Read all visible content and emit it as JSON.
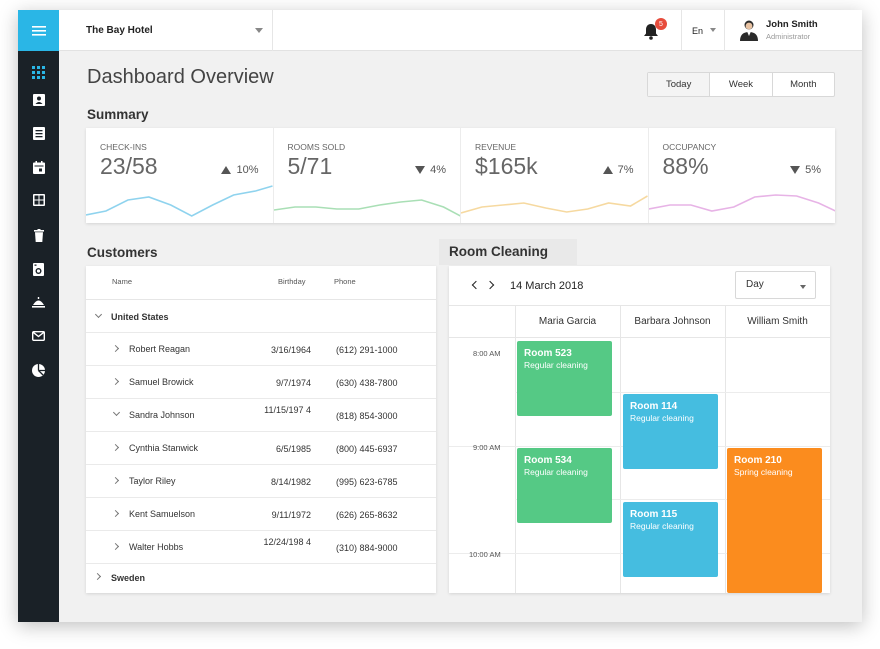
{
  "header": {
    "hotel": "The Bay Hotel",
    "notifications": "5",
    "language": "En",
    "user_name": "John Smith",
    "user_role": "Administrator"
  },
  "sidebar": {
    "icons": [
      "apps-icon",
      "contact-icon",
      "list-icon",
      "calendar-icon",
      "grid-icon",
      "trash-icon",
      "washer-icon",
      "room-service-icon",
      "mail-icon",
      "pie-chart-icon"
    ]
  },
  "page": {
    "title": "Dashboard Overview",
    "ranges": [
      "Today",
      "Week",
      "Month"
    ],
    "selected_range": "Today"
  },
  "summary": {
    "title": "Summary",
    "kpis": [
      {
        "label": "CHECK-INS",
        "value": "23/58",
        "delta": "10%",
        "direction": "up",
        "color": "#8fd3ee"
      },
      {
        "label": "ROOMS SOLD",
        "value": "5/71",
        "delta": "4%",
        "direction": "down",
        "color": "#a9dfb5"
      },
      {
        "label": "REVENUE",
        "value": "$165k",
        "delta": "7%",
        "direction": "up",
        "color": "#f6d9a0"
      },
      {
        "label": "OCCUPANCY",
        "value": "88%",
        "delta": "5%",
        "direction": "down",
        "color": "#e7b3e6"
      }
    ]
  },
  "customers": {
    "title": "Customers",
    "columns": {
      "name": "Name",
      "birthday": "Birthday",
      "phone": "Phone"
    },
    "groups": [
      {
        "country": "United States",
        "expanded": true
      },
      {
        "country": "Sweden",
        "expanded": false
      }
    ],
    "rows": [
      {
        "name": "Robert Reagan",
        "birthday": "3/16/1964",
        "phone": "(612) 291-1000",
        "expanded": false
      },
      {
        "name": "Samuel Browick",
        "birthday": "9/7/1974",
        "phone": "(630) 438-7800",
        "expanded": false
      },
      {
        "name": "Sandra Johnson",
        "birthday": "11/15/197 4",
        "phone": "(818) 854-3000",
        "expanded": true
      },
      {
        "name": "Cynthia Stanwick",
        "birthday": "6/5/1985",
        "phone": "(800) 445-6937",
        "expanded": false
      },
      {
        "name": "Taylor Riley",
        "birthday": "8/14/1982",
        "phone": "(995) 623-6785",
        "expanded": false
      },
      {
        "name": "Kent Samuelson",
        "birthday": "9/11/1972",
        "phone": "(626) 265-8632",
        "expanded": false
      },
      {
        "name": "Walter Hobbs",
        "birthday": "12/24/198 4",
        "phone": "(310) 884-9000",
        "expanded": false
      }
    ]
  },
  "cleaning": {
    "title": "Room Cleaning",
    "date": "14 March 2018",
    "view": "Day",
    "staff": [
      "Maria Garcia",
      "Barbara Johnson",
      "William Smith"
    ],
    "times": [
      "8:00 AM",
      "9:00 AM",
      "10:00 AM"
    ],
    "events": [
      {
        "room": "Room 523",
        "task": "Regular cleaning",
        "color": "#55c985"
      },
      {
        "room": "Room 534",
        "task": "Regular cleaning",
        "color": "#55c985"
      },
      {
        "room": "Room 114",
        "task": "Regular cleaning",
        "color": "#45bde0"
      },
      {
        "room": "Room 115",
        "task": "Regular cleaning",
        "color": "#45bde0"
      },
      {
        "room": "Room 210",
        "task": "Spring cleaning",
        "color": "#fb8c1e"
      }
    ]
  }
}
